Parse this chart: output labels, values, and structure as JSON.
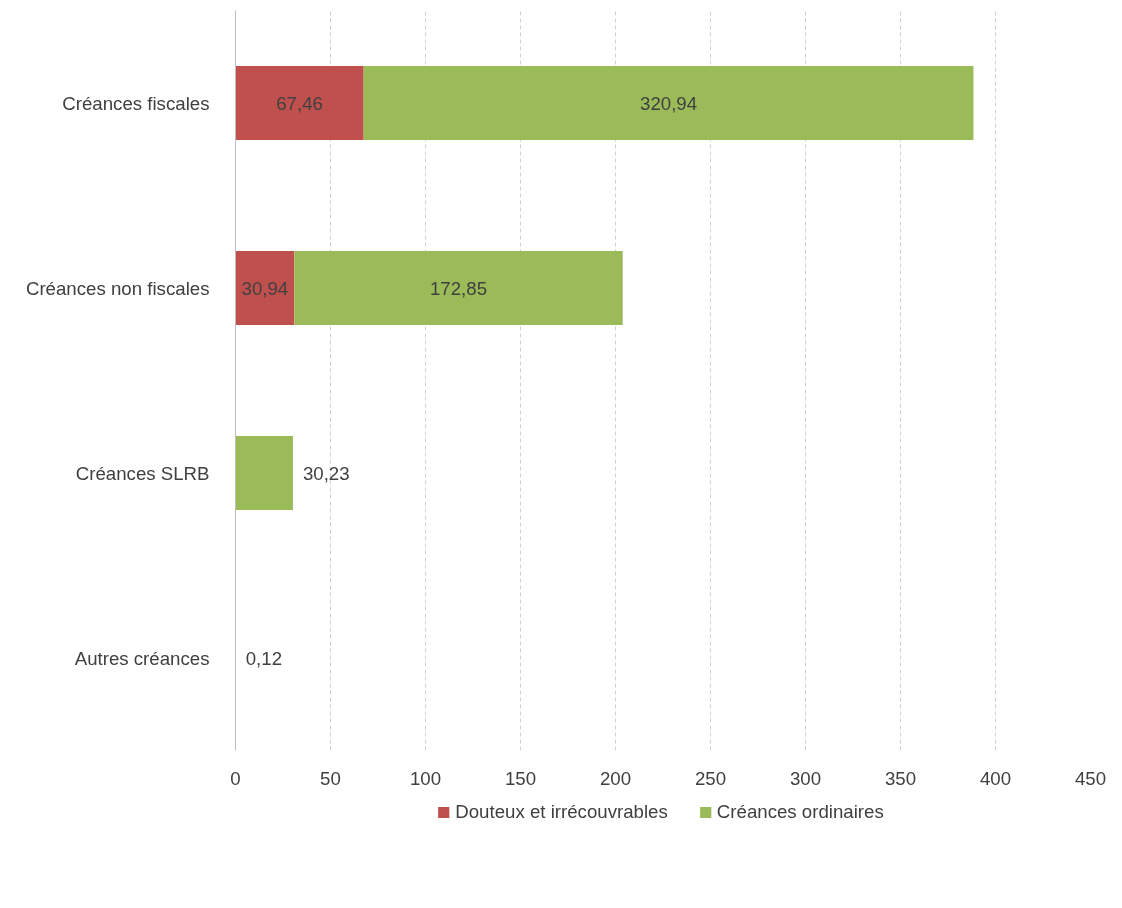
{
  "chart_data": {
    "type": "bar",
    "orientation": "horizontal",
    "stacked": true,
    "categories": [
      "Créances fiscales",
      "Créances non fiscales",
      "Créances SLRB",
      "Autres créances"
    ],
    "series": [
      {
        "name": "Douteux et irrécouvrables",
        "color": "#c0504d",
        "values": [
          67.46,
          30.94,
          null,
          null
        ],
        "value_labels": [
          "67,46",
          "30,94",
          null,
          null
        ]
      },
      {
        "name": "Créances ordinaires",
        "color": "#9bbb59",
        "values": [
          320.94,
          172.85,
          30.23,
          0.12
        ],
        "value_labels": [
          "320,94",
          "172,85",
          "30,23",
          "0,12"
        ]
      }
    ],
    "xlim": [
      0,
      450
    ],
    "xticks": [
      0,
      50,
      100,
      150,
      200,
      250,
      300,
      350,
      400,
      450
    ],
    "grid": "x",
    "legend": "bottom"
  }
}
